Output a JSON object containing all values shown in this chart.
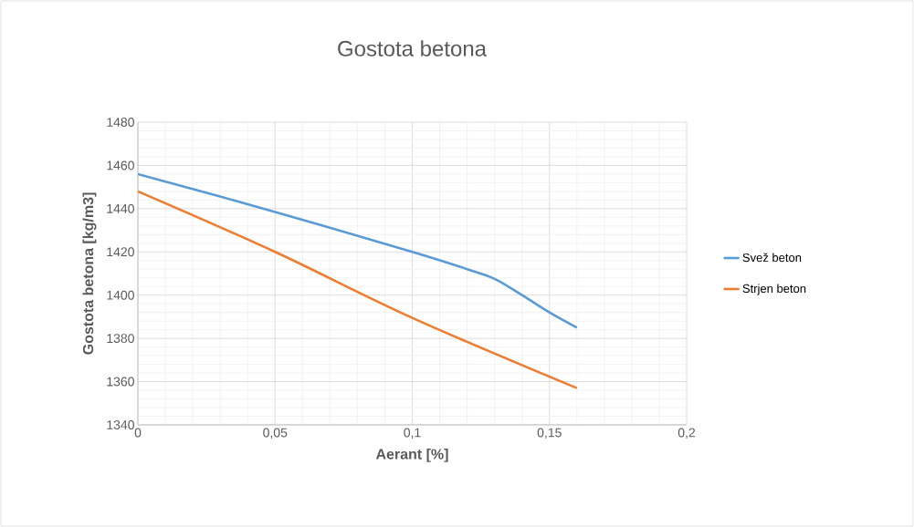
{
  "chart_data": {
    "type": "line",
    "title": "Gostota betona",
    "xlabel": "Aerant [%]",
    "ylabel": "Gostota betona [kg/m3]",
    "series": [
      {
        "name": "Svež beton",
        "color": "#5b9bd5",
        "x": [
          0,
          0.05,
          0.1,
          0.12,
          0.13,
          0.14,
          0.15,
          0.16
        ],
        "values": [
          1456,
          1438.5,
          1420,
          1412,
          1407.5,
          1400,
          1392,
          1385
        ]
      },
      {
        "name": "Strjen beton",
        "color": "#ed7d31",
        "x": [
          0,
          0.05,
          0.1,
          0.16
        ],
        "values": [
          1448,
          1420,
          1389.5,
          1357
        ]
      }
    ],
    "xlim": [
      0,
      0.2
    ],
    "ylim": [
      1340,
      1480
    ],
    "xticks": [
      0,
      {
        "value": 0.05,
        "label": "0,05"
      },
      {
        "value": 0.1,
        "label": "0,1"
      },
      {
        "value": 0.15,
        "label": "0,15"
      },
      {
        "value": 0.2,
        "label": "0,2"
      }
    ],
    "yticks": [
      1340,
      1360,
      1380,
      1400,
      1420,
      1440,
      1460,
      1480
    ],
    "grid": true,
    "legend": "right",
    "marker": "none",
    "line_style": "solid"
  }
}
